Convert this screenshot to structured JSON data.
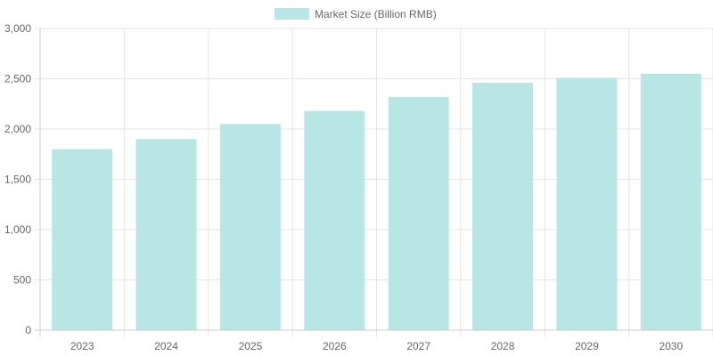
{
  "legend": {
    "label": "Market Size (Billion RMB)"
  },
  "colors": {
    "bar_fill": "#b7e6e4",
    "grid": "#e5e5e5",
    "axis": "#cccccc",
    "text": "#666666"
  },
  "chart_data": {
    "type": "bar",
    "categories": [
      "2023",
      "2024",
      "2025",
      "2026",
      "2027",
      "2028",
      "2029",
      "2030"
    ],
    "series": [
      {
        "name": "Market Size (Billion RMB)",
        "values": [
          1800,
          1900,
          2050,
          2180,
          2320,
          2460,
          2510,
          2550
        ]
      }
    ],
    "y_ticks": [
      "0",
      "500",
      "1,000",
      "1,500",
      "2,000",
      "2,500",
      "3,000"
    ],
    "ylim": [
      0,
      3000
    ],
    "grid": true,
    "legend_position": "top-center"
  }
}
